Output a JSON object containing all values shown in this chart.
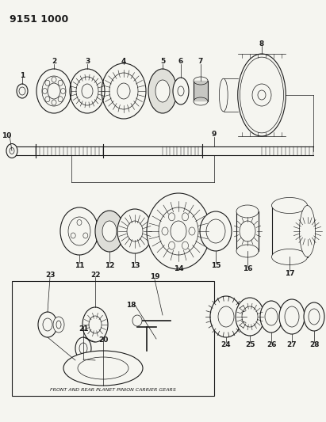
{
  "title": "9151 1000",
  "bg_color": "#f5f5f0",
  "line_color": "#1a1a1a",
  "title_fontsize": 9,
  "label_fontsize": 6.5,
  "caption": "FRONT AND REAR PLANET PINION CARRIER GEARS",
  "figsize": [
    4.11,
    5.33
  ],
  "dpi": 100
}
